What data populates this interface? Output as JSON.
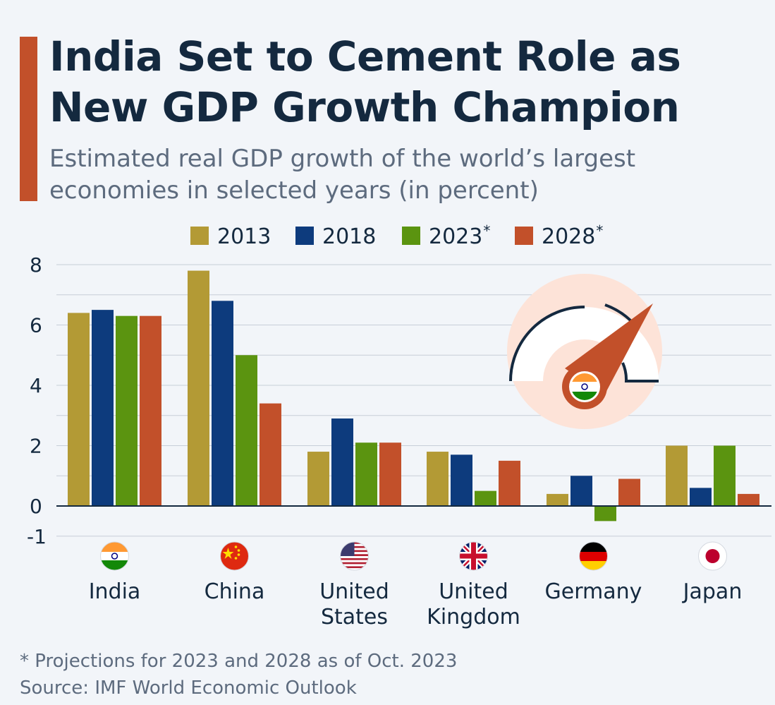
{
  "header": {
    "title": "India Set to Cement Role as New GDP Growth Champion",
    "subtitle": "Estimated real GDP growth of the world’s largest economies in selected years (in percent)"
  },
  "colors": {
    "accent": "#c2502a",
    "series_2013": "#b39a35",
    "series_2018": "#0d3b7d",
    "series_2023": "#5b9410",
    "series_2028": "#c2502a",
    "text_dark": "#14293f",
    "text_muted": "#5d6b7e"
  },
  "legend": [
    {
      "label": "2013",
      "star": ""
    },
    {
      "label": "2018",
      "star": ""
    },
    {
      "label": "2023",
      "star": "*"
    },
    {
      "label": "2028",
      "star": "*"
    }
  ],
  "chart_data": {
    "type": "bar",
    "title": "India Set to Cement Role as New GDP Growth Champion",
    "subtitle": "Estimated real GDP growth of the world’s largest economies in selected years (in percent)",
    "categories": [
      "India",
      "China",
      "United States",
      "United Kingdom",
      "Germany",
      "Japan"
    ],
    "category_lines": [
      [
        "India"
      ],
      [
        "China"
      ],
      [
        "United",
        "States"
      ],
      [
        "United",
        "Kingdom"
      ],
      [
        "Germany"
      ],
      [
        "Japan"
      ]
    ],
    "category_flags": [
      "india-flag-icon",
      "china-flag-icon",
      "us-flag-icon",
      "uk-flag-icon",
      "germany-flag-icon",
      "japan-flag-icon"
    ],
    "series": [
      {
        "name": "2013",
        "values": [
          6.4,
          7.8,
          1.8,
          1.8,
          0.4,
          2.0
        ]
      },
      {
        "name": "2018",
        "values": [
          6.5,
          6.8,
          2.9,
          1.7,
          1.0,
          0.6
        ]
      },
      {
        "name": "2023*",
        "values": [
          6.3,
          5.0,
          2.1,
          0.5,
          -0.5,
          2.0
        ]
      },
      {
        "name": "2028*",
        "values": [
          6.3,
          3.4,
          2.1,
          1.5,
          0.9,
          0.4
        ]
      }
    ],
    "ylim": [
      -1,
      8
    ],
    "yticks": [
      8,
      6,
      4,
      2,
      0,
      -1
    ],
    "grid": true,
    "legend_position": "top"
  },
  "illustration": {
    "name": "speedometer-india-icon"
  },
  "footer": {
    "footnote": "* Projections for 2023 and 2028 as of Oct. 2023",
    "source": "Source: IMF World Economic Outlook"
  }
}
